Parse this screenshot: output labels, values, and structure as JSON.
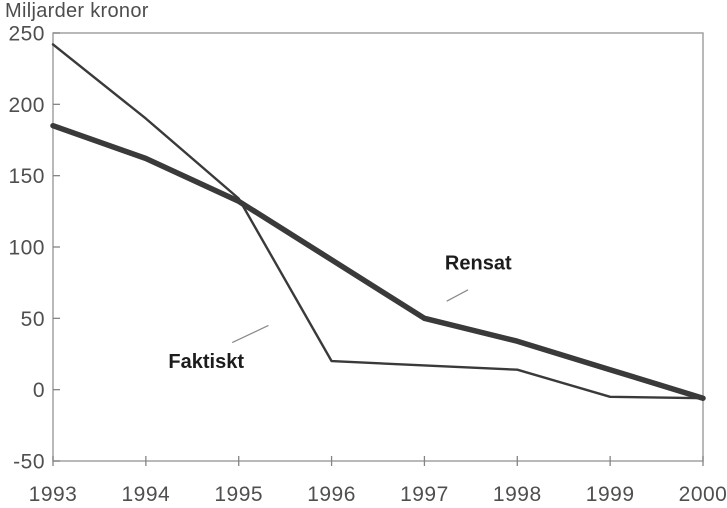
{
  "chart_data": {
    "type": "line",
    "title": "Miljarder kronor",
    "xlabel": "",
    "ylabel": "Miljarder kronor",
    "x": [
      1993,
      1994,
      1995,
      1996,
      1997,
      1998,
      1999,
      2000
    ],
    "x_tick_labels": [
      "1993",
      "1994",
      "1995",
      "1996",
      "1997",
      "1998",
      "1999",
      "2000"
    ],
    "ylim": [
      -50,
      250
    ],
    "yticks": [
      250,
      200,
      150,
      100,
      50,
      0,
      -50
    ],
    "grid": false,
    "legend_position": "inline-annotations",
    "line_color": "#3a3a3a",
    "axis_color": "#9b9b9b",
    "tick_color": "#848484",
    "text_color": "#4f4f4f",
    "leader_color": "#8a8a8a",
    "series": [
      {
        "name": "Rensat",
        "style": "thick",
        "values": [
          185,
          162,
          132,
          91,
          50,
          34,
          14,
          -6
        ]
      },
      {
        "name": "Faktiskt",
        "style": "thin",
        "values": [
          242,
          190,
          134,
          20,
          17,
          14,
          -5,
          -6
        ]
      }
    ],
    "annotations": [
      {
        "text": "Rensat",
        "label_x": 1997.58,
        "label_y": 89,
        "leader": [
          1997.24,
          62,
          1997.47,
          70
        ]
      },
      {
        "text": "Faktiskt",
        "label_x": 1994.65,
        "label_y": 20,
        "leader": [
          1994.93,
          33,
          1995.32,
          45
        ]
      }
    ]
  }
}
